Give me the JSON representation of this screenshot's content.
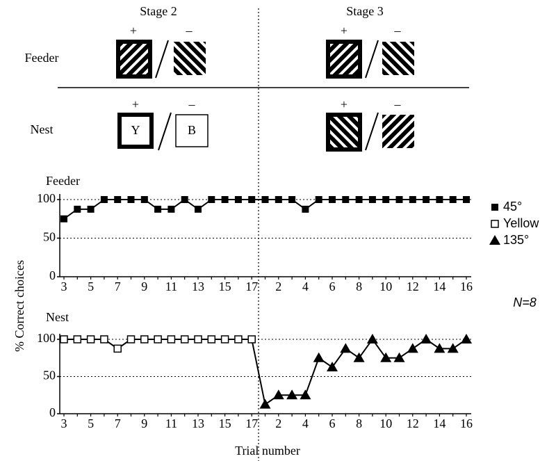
{
  "stimuli": {
    "stages": [
      "Stage 2",
      "Stage 3"
    ],
    "rows": [
      "Feeder",
      "Nest"
    ],
    "plus": "+",
    "minus": "–",
    "letters": [
      "Y",
      "B"
    ]
  },
  "note": "N=8",
  "chart_data": [
    {
      "type": "line",
      "title": "Feeder",
      "ylabel": "% Correct choices",
      "categories": [
        "3",
        null,
        "5",
        null,
        "7",
        null,
        "9",
        null,
        "11",
        null,
        "13",
        null,
        "15",
        null,
        "17",
        null,
        "2",
        null,
        "4",
        null,
        "6",
        null,
        "8",
        null,
        "10",
        null,
        "12",
        null,
        "14",
        null,
        "16"
      ],
      "ylim": [
        0,
        100
      ],
      "yticks": [
        0,
        50,
        100
      ],
      "grid": true,
      "series": [
        {
          "name": "45°",
          "color": "#000000",
          "marker": "square-filled",
          "values": [
            75,
            87.5,
            87.5,
            100,
            100,
            100,
            100,
            87.5,
            87.5,
            100,
            87.5,
            100,
            100,
            100,
            100,
            100,
            100,
            100,
            87.5,
            100,
            100,
            100,
            100,
            100,
            100,
            100,
            100,
            100,
            100,
            100,
            100
          ]
        }
      ]
    },
    {
      "type": "line",
      "title": "Nest",
      "xlabel": "Trial number",
      "categories": [
        "3",
        null,
        "5",
        null,
        "7",
        null,
        "9",
        null,
        "11",
        null,
        "13",
        null,
        "15",
        null,
        "17",
        null,
        "2",
        null,
        "4",
        null,
        "6",
        null,
        "8",
        null,
        "10",
        null,
        "12",
        null,
        "14",
        null,
        "16"
      ],
      "ylim": [
        0,
        100
      ],
      "yticks": [
        0,
        50,
        100
      ],
      "grid": true,
      "series": [
        {
          "name": "Yellow",
          "color": "#000000",
          "marker": "square-open",
          "values": [
            100,
            100,
            100,
            100,
            87.5,
            100,
            100,
            100,
            100,
            100,
            100,
            100,
            100,
            100,
            100,
            null,
            null,
            null,
            null,
            null,
            null,
            null,
            null,
            null,
            null,
            null,
            null,
            null,
            null,
            null,
            null
          ]
        },
        {
          "name": "135°",
          "color": "#000000",
          "marker": "triangle",
          "values": [
            null,
            null,
            null,
            null,
            null,
            null,
            null,
            null,
            null,
            null,
            null,
            null,
            null,
            null,
            null,
            12.5,
            25,
            25,
            25,
            75,
            62.5,
            87.5,
            75,
            100,
            75,
            75,
            87.5,
            100,
            87.5,
            87.5,
            100
          ]
        }
      ]
    }
  ]
}
